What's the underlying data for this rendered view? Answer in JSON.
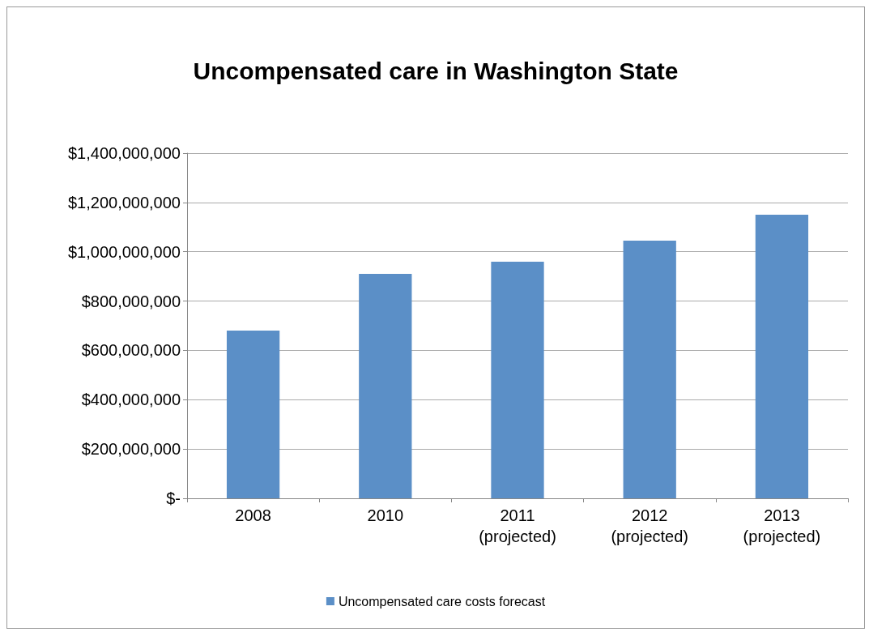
{
  "chart_data": {
    "type": "bar",
    "title": "Uncompensated care in Washington State",
    "categories": [
      "2008",
      "2010",
      "2011\n(projected)",
      "2012\n(projected)",
      "2013\n(projected)"
    ],
    "series": [
      {
        "name": "Uncompensated care costs forecast",
        "color": "#5b8fc7",
        "values": [
          680000000,
          910000000,
          960000000,
          1045000000,
          1150000000
        ]
      }
    ],
    "ylim": [
      0,
      1400000000
    ],
    "yticks": [
      {
        "value": 0,
        "label": "$-"
      },
      {
        "value": 200000000,
        "label": "$200,000,000"
      },
      {
        "value": 400000000,
        "label": "$400,000,000"
      },
      {
        "value": 600000000,
        "label": "$600,000,000"
      },
      {
        "value": 800000000,
        "label": "$800,000,000"
      },
      {
        "value": 1000000000,
        "label": "$1,000,000,000"
      },
      {
        "value": 1200000000,
        "label": "$1,200,000,000"
      },
      {
        "value": 1400000000,
        "label": "$1,400,000,000"
      }
    ],
    "grid": "y",
    "legend": "bottom"
  }
}
